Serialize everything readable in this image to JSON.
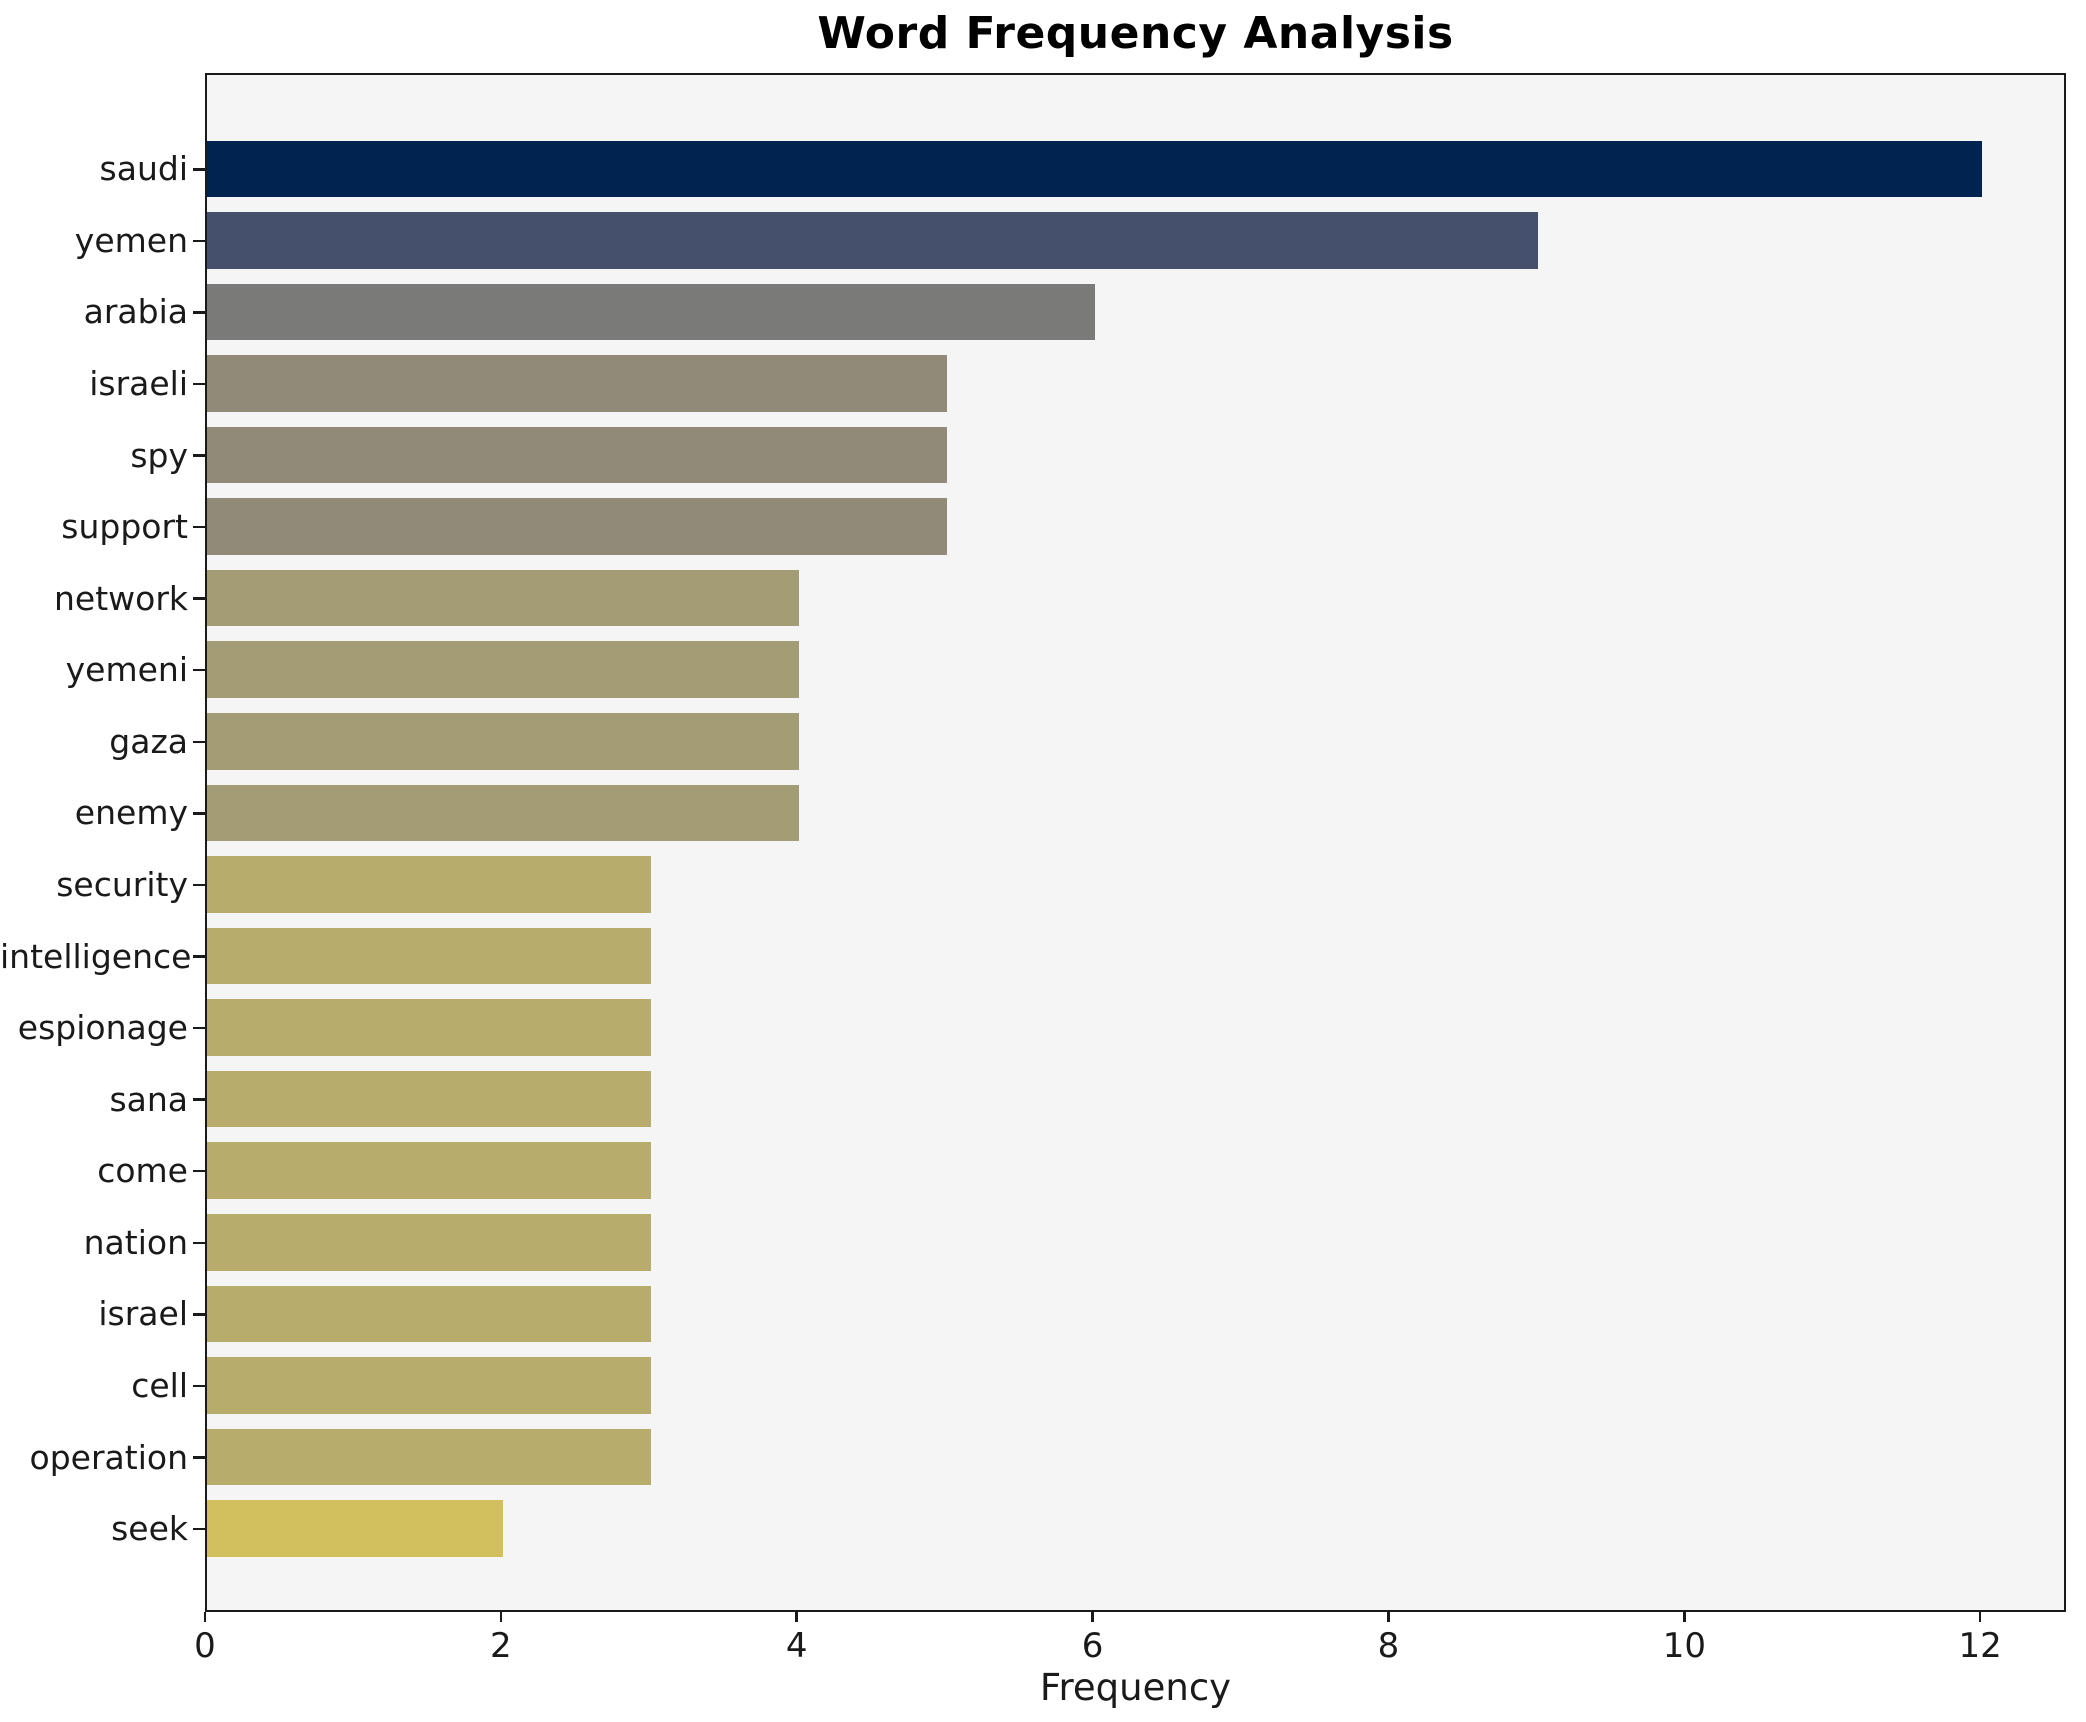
{
  "chart_data": {
    "type": "bar",
    "orientation": "horizontal",
    "title": "Word Frequency Analysis",
    "xlabel": "Frequency",
    "ylabel": "",
    "categories": [
      "saudi",
      "yemen",
      "arabia",
      "israeli",
      "spy",
      "support",
      "network",
      "yemeni",
      "gaza",
      "enemy",
      "security",
      "intelligence",
      "espionage",
      "sana",
      "come",
      "nation",
      "israel",
      "cell",
      "operation",
      "seek"
    ],
    "values": [
      12,
      9,
      6,
      5,
      5,
      5,
      4,
      4,
      4,
      4,
      3,
      3,
      3,
      3,
      3,
      3,
      3,
      3,
      3,
      2
    ],
    "bar_colors": [
      "#002350",
      "#44506c",
      "#7a7a78",
      "#918a78",
      "#918a78",
      "#918a78",
      "#a49c74",
      "#a49c74",
      "#a49c74",
      "#a49c74",
      "#b8ac6c",
      "#b8ac6c",
      "#b8ac6c",
      "#b8ac6c",
      "#b8ac6c",
      "#b8ac6c",
      "#b8ac6c",
      "#b8ac6c",
      "#b8ac6c",
      "#d2bf5e"
    ],
    "xticks": [
      0,
      2,
      4,
      6,
      8,
      10,
      12
    ],
    "xlim": [
      0,
      12.58
    ],
    "grid": false,
    "legend": null,
    "plot_background": "#f5f5f6",
    "figure_background": "#ffffff",
    "spine_color": "#1a1a1a",
    "text_color": "#1a1a1a"
  }
}
